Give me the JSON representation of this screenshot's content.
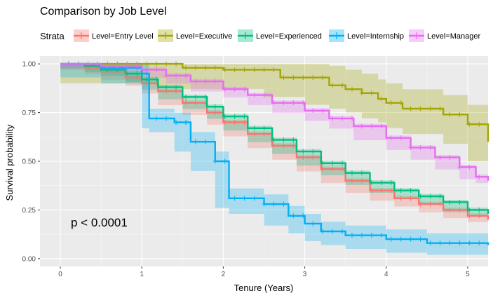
{
  "chart_data": {
    "type": "line",
    "title": "Comparison by Job Level",
    "xlabel": "Tenure (Years)",
    "ylabel": "Survival probability",
    "xlim": [
      -0.25,
      5.25
    ],
    "ylim": [
      -0.04,
      1.04
    ],
    "x_ticks": [
      0,
      1,
      2,
      3,
      4,
      5
    ],
    "x_tick_labels": [
      "0",
      "1",
      "2",
      "3",
      "4",
      "5"
    ],
    "y_ticks": [
      0,
      0.25,
      0.5,
      0.75,
      1
    ],
    "y_tick_labels": [
      "0.00",
      "0.25",
      "0.50",
      "0.75",
      "1.00"
    ],
    "grid": true,
    "legend_title": "Strata",
    "legend_position": "top",
    "annotation": "p < 0.0001",
    "series": [
      {
        "name": "Level=Entry Level",
        "color": "#F8766D",
        "x": [
          0,
          0.3,
          0.5,
          0.8,
          1.0,
          1.2,
          1.5,
          1.8,
          2.0,
          2.3,
          2.6,
          2.9,
          3.2,
          3.5,
          3.8,
          4.1,
          4.4,
          4.7,
          5.0,
          5.25
        ],
        "y": [
          1.0,
          0.98,
          0.96,
          0.93,
          0.9,
          0.86,
          0.8,
          0.75,
          0.7,
          0.64,
          0.58,
          0.52,
          0.46,
          0.4,
          0.35,
          0.31,
          0.28,
          0.25,
          0.22,
          0.2
        ],
        "ci_width": 0.012
      },
      {
        "name": "Level=Executive",
        "color": "#A3A500",
        "x": [
          0,
          0.7,
          1.2,
          1.5,
          2.0,
          2.5,
          2.7,
          3.0,
          3.3,
          3.5,
          3.7,
          3.9,
          4.0,
          4.2,
          4.7,
          5.0,
          5.25
        ],
        "y": [
          1.0,
          1.0,
          1.0,
          0.98,
          0.97,
          0.97,
          0.93,
          0.93,
          0.89,
          0.87,
          0.85,
          0.82,
          0.8,
          0.77,
          0.74,
          0.69,
          0.6
        ],
        "ci_width": 0.1
      },
      {
        "name": "Level=Experienced",
        "color": "#00BF7D",
        "x": [
          0,
          0.3,
          0.5,
          0.8,
          1.0,
          1.2,
          1.5,
          1.8,
          2.0,
          2.3,
          2.6,
          2.9,
          3.2,
          3.5,
          3.8,
          4.1,
          4.4,
          4.7,
          5.0,
          5.25
        ],
        "y": [
          1.0,
          0.99,
          0.97,
          0.95,
          0.92,
          0.88,
          0.83,
          0.78,
          0.73,
          0.67,
          0.61,
          0.55,
          0.49,
          0.44,
          0.39,
          0.35,
          0.32,
          0.29,
          0.25,
          0.23
        ],
        "ci_width": 0.012
      },
      {
        "name": "Level=Internship",
        "color": "#00B0F6",
        "x": [
          0,
          0.5,
          1.0,
          1.09,
          1.4,
          1.6,
          1.9,
          2.07,
          2.5,
          2.8,
          3.0,
          3.2,
          3.5,
          4.0,
          4.5,
          5.25
        ],
        "y": [
          1.0,
          0.98,
          0.95,
          0.72,
          0.7,
          0.6,
          0.5,
          0.31,
          0.28,
          0.22,
          0.18,
          0.14,
          0.12,
          0.1,
          0.08,
          0.07
        ],
        "ci_width": 0.05
      },
      {
        "name": "Level=Manager",
        "color": "#E76BF3",
        "x": [
          0,
          0.5,
          1.0,
          1.3,
          1.6,
          2.0,
          2.3,
          2.6,
          3.0,
          3.3,
          3.6,
          4.0,
          4.3,
          4.6,
          4.9,
          5.1,
          5.25
        ],
        "y": [
          1.0,
          0.99,
          0.97,
          0.94,
          0.91,
          0.87,
          0.84,
          0.8,
          0.76,
          0.72,
          0.68,
          0.62,
          0.57,
          0.52,
          0.47,
          0.42,
          0.4
        ],
        "ci_width": 0.012
      }
    ]
  }
}
